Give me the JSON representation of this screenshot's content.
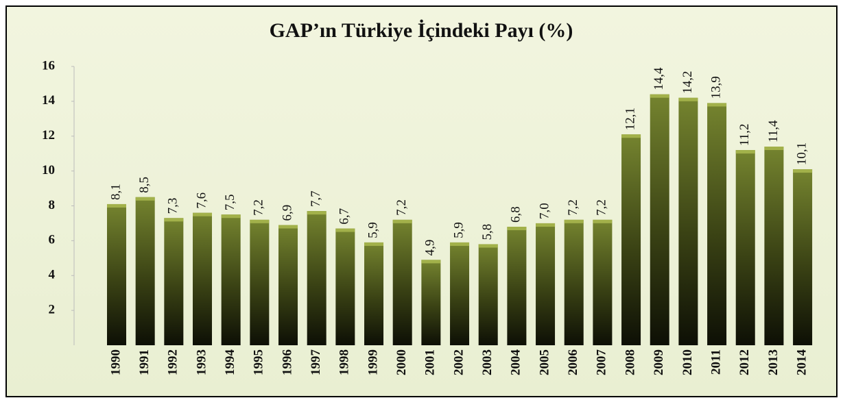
{
  "chart_data": {
    "type": "bar",
    "title": "GAP’ın Türkiye İçindeki Payı (%)",
    "categories": [
      "1990",
      "1991",
      "1992",
      "1993",
      "1994",
      "1995",
      "1996",
      "1997",
      "1998",
      "1999",
      "2000",
      "2001",
      "2002",
      "2003",
      "2004",
      "2005",
      "2006",
      "2007",
      "2008",
      "2009",
      "2010",
      "2011",
      "2012",
      "2013",
      "2014"
    ],
    "values": [
      8.1,
      8.5,
      7.3,
      7.6,
      7.5,
      7.2,
      6.9,
      7.7,
      6.7,
      5.9,
      7.2,
      4.9,
      5.9,
      5.8,
      6.8,
      7.0,
      7.2,
      7.2,
      12.1,
      14.4,
      14.2,
      13.9,
      11.2,
      11.4,
      10.1
    ],
    "value_labels": [
      "8,1",
      "8,5",
      "7,3",
      "7,6",
      "7,5",
      "7,2",
      "6,9",
      "7,7",
      "6,7",
      "5,9",
      "7,2",
      "4,9",
      "5,9",
      "5,8",
      "6,8",
      "7,0",
      "7,2",
      "7,2",
      "12,1",
      "14,4",
      "14,2",
      "13,9",
      "11,2",
      "11,4",
      "10,1"
    ],
    "color": "#75842f",
    "ylim": [
      0,
      16
    ],
    "yticks": [
      2,
      4,
      6,
      8,
      10,
      12,
      14,
      16
    ],
    "grid": false
  }
}
